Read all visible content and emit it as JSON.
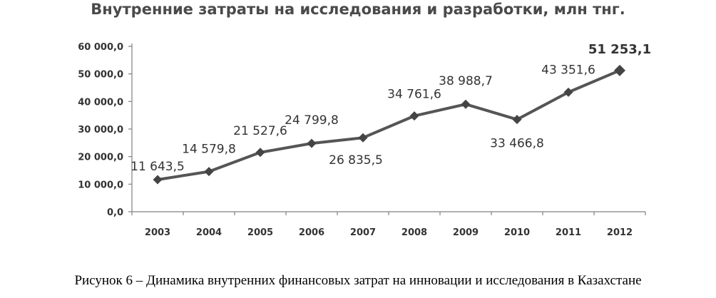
{
  "chart_data": {
    "type": "line",
    "title": "Внутренние затраты на исследования и разработки, млн тнг.",
    "xlabel": "",
    "ylabel": "",
    "categories": [
      "2003",
      "2004",
      "2005",
      "2006",
      "2007",
      "2008",
      "2009",
      "2010",
      "2011",
      "2012"
    ],
    "series": [
      {
        "values": [
          11643.5,
          14579.8,
          21527.6,
          24799.8,
          26835.5,
          34761.6,
          38988.7,
          33466.8,
          43351.6,
          51253.1
        ]
      }
    ],
    "data_labels": [
      "11 643,5",
      "14 579,8",
      "21 527,6",
      "24 799,8",
      "26 835,5",
      "34 761,6",
      "38 988,7",
      "33 466,8",
      "43 351,6",
      "51 253,1"
    ],
    "y_ticks": [
      "0,0",
      "10 000,0",
      "20 000,0",
      "30 000,0",
      "40 000,0",
      "50 000,0",
      "60 000,0"
    ],
    "ylim": [
      0,
      60000
    ],
    "grid": false,
    "legend": "none",
    "colors": {
      "line": "#555555",
      "marker": "#444444",
      "axis": "#808080",
      "text": "#333333"
    }
  },
  "caption": "Рисунок 6 – Динамика внутренних финансовых затрат на инновации и исследования в Казахстане"
}
